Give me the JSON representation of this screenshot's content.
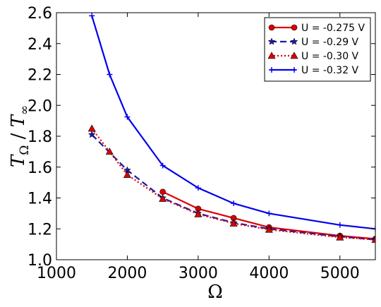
{
  "chart_data": {
    "type": "line",
    "title": "",
    "xlabel": "Ω",
    "ylabel_parts": [
      "T",
      "Ω",
      " / ",
      "T",
      "∞"
    ],
    "xlim": [
      1000,
      5500
    ],
    "ylim": [
      1.0,
      2.6
    ],
    "xticks": [
      1000,
      2000,
      3000,
      4000,
      5000
    ],
    "xtick_labels": [
      "1000",
      "2000",
      "3000",
      "4000",
      "5000"
    ],
    "yticks": [
      1.0,
      1.2,
      1.4,
      1.6,
      1.8,
      2.0,
      2.2,
      2.4,
      2.6
    ],
    "ytick_labels": [
      "1.0",
      "1.2",
      "1.4",
      "1.6",
      "1.8",
      "2.0",
      "2.2",
      "2.4",
      "2.6"
    ],
    "grid": false,
    "legend_position": "top-right",
    "series": [
      {
        "name": "U = -0.275 V",
        "color": "#dd0000",
        "dash": "",
        "marker": "circle",
        "points": [
          [
            2500,
            1.44
          ],
          [
            3000,
            1.33
          ],
          [
            3500,
            1.27
          ],
          [
            4000,
            1.21
          ],
          [
            5000,
            1.155
          ],
          [
            5500,
            1.135
          ]
        ]
      },
      {
        "name": "U = -0.29 V",
        "color": "#1a1aaa",
        "dash": "9,5",
        "marker": "star",
        "points": [
          [
            1500,
            1.81
          ],
          [
            2000,
            1.58
          ],
          [
            2500,
            1.4
          ],
          [
            3000,
            1.3
          ],
          [
            3500,
            1.24
          ],
          [
            4000,
            1.2
          ],
          [
            5000,
            1.15
          ],
          [
            5500,
            1.13
          ]
        ]
      },
      {
        "name": "U = -0.30 V",
        "color": "#dd0000",
        "dash": "2,3",
        "marker": "triangle",
        "points": [
          [
            1500,
            1.85
          ],
          [
            1750,
            1.7
          ],
          [
            2000,
            1.55
          ],
          [
            2500,
            1.395
          ],
          [
            3000,
            1.295
          ],
          [
            3500,
            1.235
          ],
          [
            4000,
            1.195
          ],
          [
            5000,
            1.145
          ],
          [
            5500,
            1.13
          ]
        ]
      },
      {
        "name": "U = -0.32 V",
        "color": "#0000ee",
        "dash": "",
        "marker": "plus",
        "points": [
          [
            1500,
            2.58
          ],
          [
            1750,
            2.2
          ],
          [
            2000,
            1.925
          ],
          [
            2500,
            1.61
          ],
          [
            3000,
            1.465
          ],
          [
            3500,
            1.365
          ],
          [
            4000,
            1.3
          ],
          [
            5000,
            1.225
          ],
          [
            5500,
            1.2
          ]
        ]
      }
    ]
  }
}
